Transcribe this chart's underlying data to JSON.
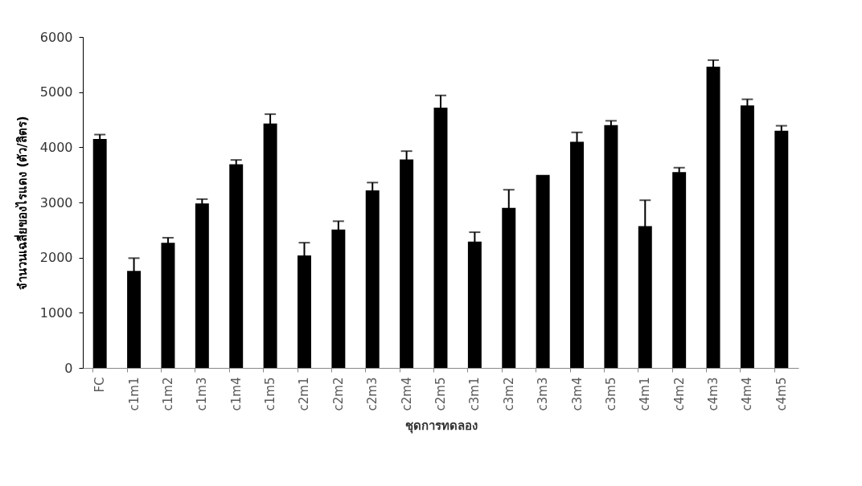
{
  "chart_data": {
    "type": "bar",
    "xlabel": "ชุดการทดลอง",
    "ylabel": "จำนวนเฉลี่ยของไรแดง (ตัว/ลิตร)",
    "categories": [
      "FC",
      "c1m1",
      "c1m2",
      "c1m3",
      "c1m4",
      "c1m5",
      "c2m1",
      "c2m2",
      "c2m3",
      "c2m4",
      "c2m5",
      "c3m1",
      "c3m2",
      "c3m3",
      "c3m4",
      "c3m5",
      "c4m1",
      "c4m2",
      "c4m3",
      "c4m4",
      "c4m5"
    ],
    "values": [
      4150,
      1760,
      2270,
      2980,
      3690,
      4430,
      2040,
      2510,
      3220,
      3780,
      4720,
      2290,
      2900,
      3500,
      4100,
      4400,
      2570,
      3550,
      5460,
      4760,
      4300
    ],
    "errors": [
      80,
      230,
      90,
      80,
      80,
      170,
      230,
      150,
      140,
      150,
      220,
      170,
      330,
      null,
      170,
      80,
      470,
      80,
      120,
      110,
      90
    ],
    "color": "#000000",
    "ylim": [
      0,
      6000
    ],
    "yticks": [
      0,
      1000,
      2000,
      3000,
      4000,
      5000,
      6000
    ],
    "grid": false
  }
}
